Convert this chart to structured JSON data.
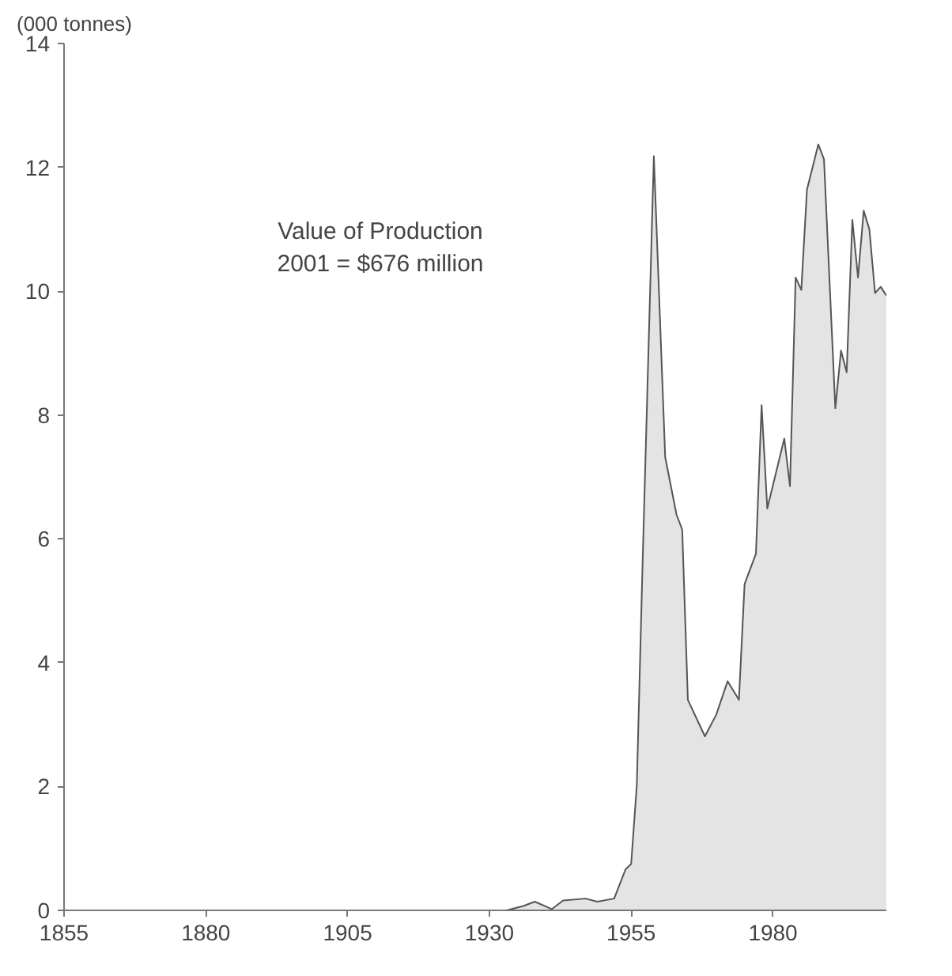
{
  "chart_data": {
    "type": "area",
    "ylabel": "(000 tonnes)",
    "annotations": [
      "Value of Production\n2001 = $676 million"
    ],
    "x": [
      1933,
      1936,
      1938,
      1941,
      1943,
      1947,
      1949,
      1952,
      1954,
      1955,
      1956,
      1957,
      1959,
      1961,
      1963,
      1964,
      1965,
      1968,
      1970,
      1972,
      1974,
      1975,
      1977,
      1978,
      1979,
      1982,
      1983,
      1984,
      1985,
      1986,
      1988,
      1989,
      1991,
      1992,
      1993,
      1994,
      1995,
      1996,
      1997,
      1998,
      1999,
      2000
    ],
    "series": [
      {
        "color": "#e4e4e4",
        "values": [
          0,
          0.07,
          0.14,
          0.02,
          0.16,
          0.19,
          0.14,
          0.19,
          0.66,
          0.75,
          2.03,
          5.56,
          12.18,
          7.32,
          6.39,
          6.15,
          3.4,
          2.81,
          3.16,
          3.7,
          3.4,
          5.27,
          5.76,
          8.16,
          6.49,
          7.62,
          6.85,
          10.22,
          10.02,
          11.64,
          12.37,
          12.13,
          8.11,
          9.04,
          8.69,
          11.15,
          10.22,
          11.3,
          11.0,
          9.97,
          10.07,
          9.93
        ]
      }
    ],
    "xlim": [
      1855,
      2000
    ],
    "xticks": [
      1855,
      1880,
      1905,
      1930,
      1955,
      1980
    ],
    "ylim": [
      0,
      14
    ],
    "yticks": [
      0,
      2,
      4,
      6,
      8,
      10,
      12,
      14
    ]
  }
}
